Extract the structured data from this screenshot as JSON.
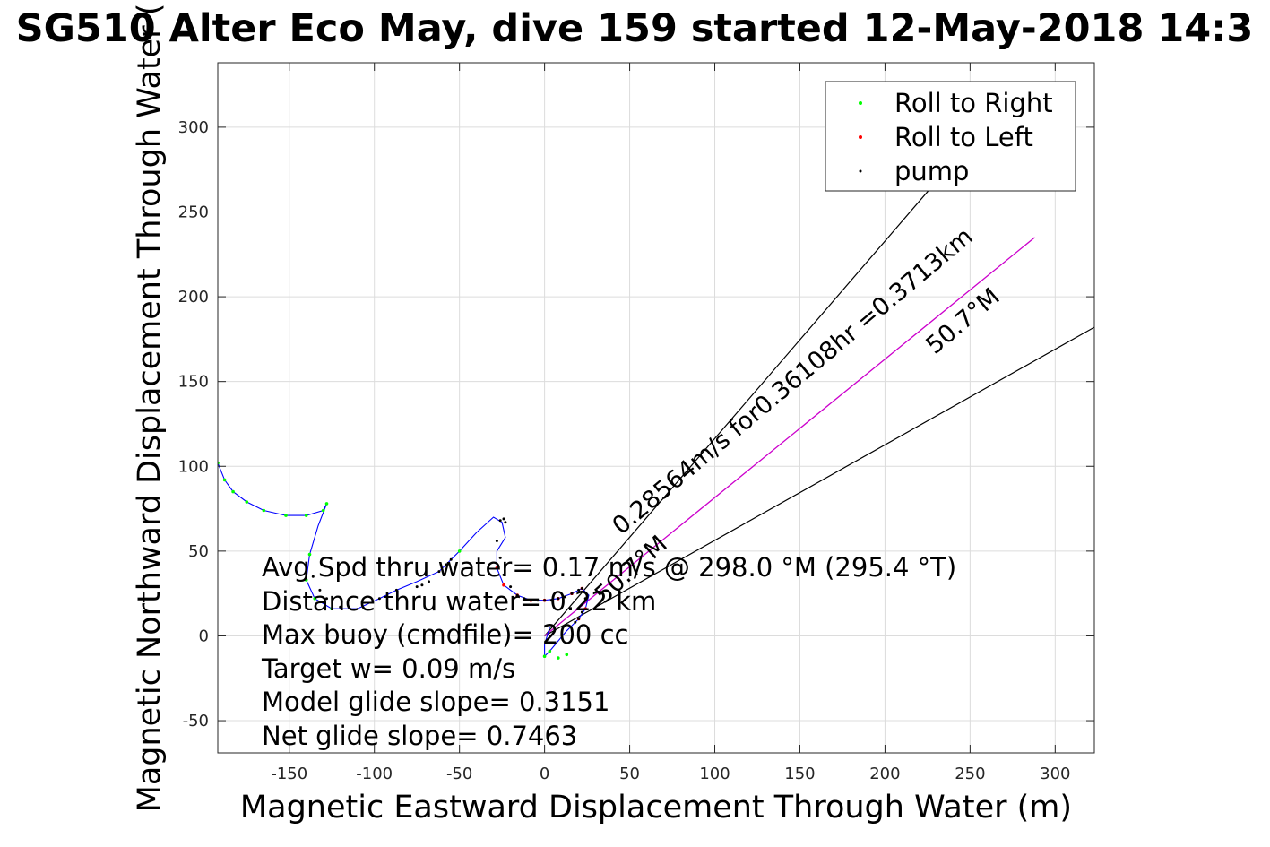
{
  "chart_data": {
    "type": "line",
    "title": "SG510 Alter Eco May, dive 159 started 12-May-2018 14:3",
    "xlabel": "Magnetic Eastward Displacement Through Water (m)",
    "ylabel": "Magnetic Northward Displacement Through Water (",
    "xlim": [
      -192,
      323
    ],
    "ylim": [
      -69,
      338
    ],
    "xticks": [
      -150,
      -100,
      -50,
      0,
      50,
      100,
      150,
      200,
      250,
      300
    ],
    "yticks": [
      -50,
      0,
      50,
      100,
      150,
      200,
      250,
      300
    ],
    "xtick_labels": [
      "-150",
      "-100",
      "-50",
      "0",
      "50",
      "100",
      "150",
      "200",
      "250",
      "300"
    ],
    "ytick_labels": [
      "-50",
      "0",
      "50",
      "100",
      "150",
      "200",
      "250",
      "300"
    ],
    "grid": true,
    "legend_position": "top-right",
    "legend": [
      {
        "label": "Roll to Right",
        "color": "#00ff00"
      },
      {
        "label": "Roll to Left",
        "color": "#ff0000"
      },
      {
        "label": "pump",
        "color": "#000000"
      }
    ],
    "track": {
      "color": "#0000ff",
      "x": [
        -192,
        -188,
        -183,
        -175,
        -165,
        -152,
        -140,
        -130,
        -128,
        -133,
        -138,
        -140,
        -135,
        -125,
        -110,
        -97,
        -87,
        -75,
        -62,
        -50,
        -40,
        -30,
        -25,
        -23,
        -28,
        -28,
        -24,
        -16,
        -8,
        0,
        8,
        16,
        22,
        26,
        24,
        20,
        13,
        8,
        3,
        0,
        0,
        3
      ],
      "y": [
        102,
        92,
        85,
        79,
        74,
        71,
        71,
        74,
        78,
        65,
        48,
        33,
        22,
        16,
        16,
        22,
        27,
        32,
        38,
        50,
        61,
        70,
        67,
        58,
        50,
        40,
        30,
        24,
        21,
        21,
        22,
        25,
        28,
        24,
        16,
        10,
        3,
        -3,
        -9,
        -12,
        -5,
        5
      ]
    },
    "roll_right": {
      "color": "#00ff00",
      "x": [
        -192,
        -188,
        -183,
        -175,
        -165,
        -152,
        -140,
        -130,
        -128,
        -138,
        -140,
        -135,
        -125,
        -50,
        0,
        3,
        8,
        13
      ],
      "y": [
        102,
        92,
        85,
        79,
        74,
        71,
        71,
        74,
        78,
        48,
        33,
        22,
        16,
        50,
        -12,
        -9,
        -13,
        -11
      ]
    },
    "roll_left": {
      "color": "#ff0000",
      "x": [
        -28,
        -24,
        -16,
        -8,
        0,
        8,
        16,
        22,
        24,
        20
      ],
      "y": [
        40,
        30,
        24,
        21,
        21,
        22,
        25,
        28,
        16,
        10
      ]
    },
    "pump": {
      "color": "#000000",
      "x": [
        -136,
        -132,
        -128,
        -120,
        -97,
        -87,
        -75,
        -72,
        -68,
        -62,
        -58,
        -55,
        -26,
        -24,
        -23,
        -28,
        -26,
        -24,
        -20,
        -16,
        -12,
        -8,
        -4,
        0,
        4,
        8,
        12,
        16,
        20,
        22,
        24,
        22,
        20,
        18
      ],
      "y": [
        35,
        27,
        22,
        17,
        22,
        27,
        29,
        30,
        32,
        38,
        42,
        45,
        68,
        69,
        67,
        56,
        46,
        36,
        29,
        24,
        22,
        21,
        21,
        21,
        21,
        22,
        23,
        25,
        27,
        28,
        22,
        14,
        10,
        8
      ]
    },
    "magenta_line": {
      "color": "#cc00cc",
      "x": [
        0,
        288
      ],
      "y": [
        0,
        235
      ]
    },
    "heading_lines": [
      {
        "x": [
          0,
          262
        ],
        "y": [
          0,
          305
        ]
      },
      {
        "x": [
          0,
          323
        ],
        "y": [
          0,
          182
        ]
      }
    ],
    "heading_labels": [
      {
        "text": "50.7°M",
        "x": 0,
        "y": 0,
        "angle": 0
      },
      {
        "text": "0.28564m/s for0.36108hr =0.3713km",
        "x": 0,
        "y": 0,
        "angle": 0
      },
      {
        "text": "50.7°M",
        "x": 0,
        "y": 0,
        "angle": 0
      }
    ],
    "stats": [
      "Avg Spd thru water=  0.17 m/s @ 298.0 °M (295.4 °T)",
      "Distance thru water= 0.22 km",
      "Max buoy (cmdfile)= 200 cc",
      "Target w= 0.09 m/s",
      "Model glide slope= 0.3151",
      "Net glide slope= 0.7463"
    ]
  }
}
